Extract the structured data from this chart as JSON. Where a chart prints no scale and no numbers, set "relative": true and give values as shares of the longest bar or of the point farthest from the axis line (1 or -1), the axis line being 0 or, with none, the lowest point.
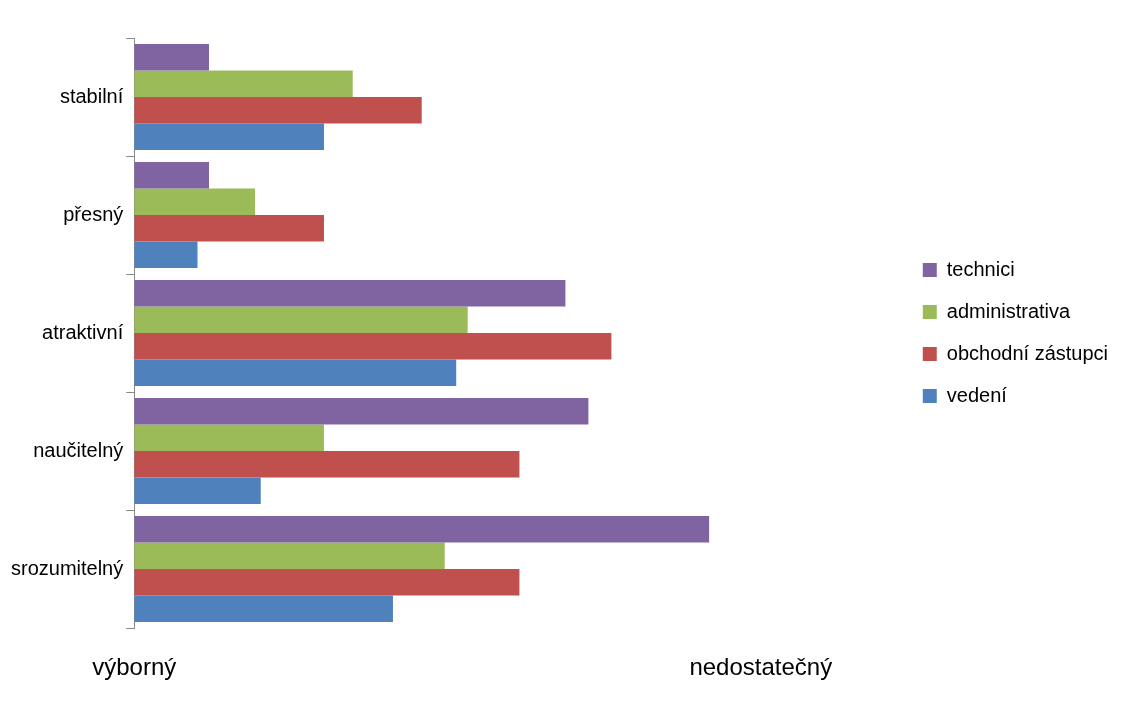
{
  "chart_data": {
    "type": "bar",
    "orientation": "horizontal",
    "relative": true,
    "categories": [
      "stabilní",
      "přesný",
      "atraktivní",
      "naučitelný",
      "srozumitelný"
    ],
    "series": [
      {
        "name": "technici",
        "color": "#8064a2",
        "values": [
          0.13,
          0.13,
          0.75,
          0.79,
          1
        ]
      },
      {
        "name": "administrativa",
        "color": "#9bbb59",
        "values": [
          0.38,
          0.21,
          0.58,
          0.33,
          0.54
        ]
      },
      {
        "name": "obchodní zástupci",
        "color": "#c0504d",
        "values": [
          0.5,
          0.33,
          0.83,
          0.67,
          0.67
        ]
      },
      {
        "name": "vedení",
        "color": "#4f81bd",
        "values": [
          0.33,
          0.11,
          0.56,
          0.22,
          0.45
        ]
      }
    ],
    "annotations": [
      "výborný",
      "nedostatečný"
    ],
    "legend": "right",
    "grid": false
  }
}
